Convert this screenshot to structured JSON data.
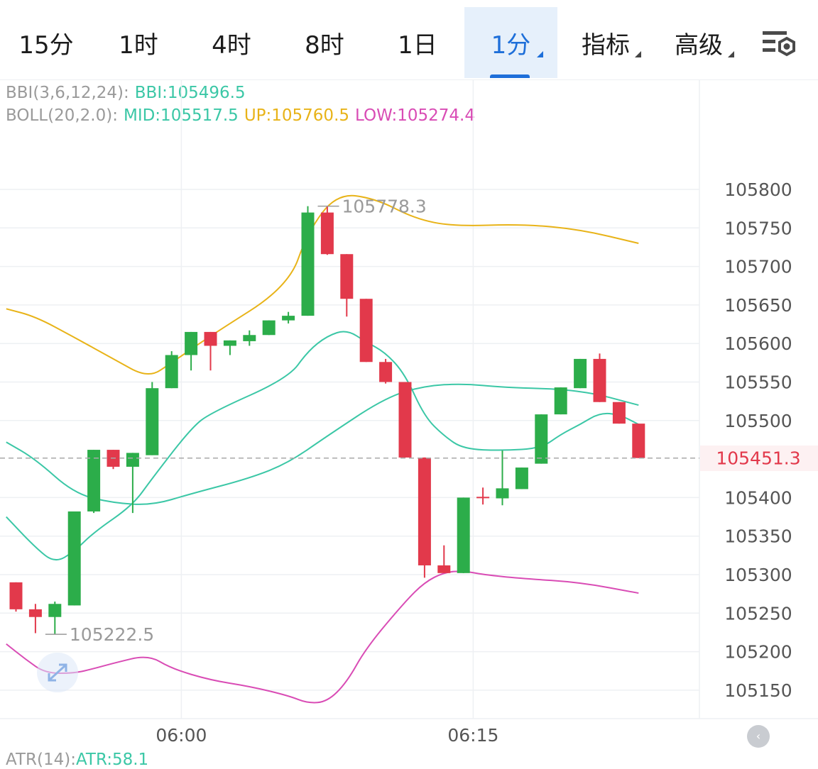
{
  "tabs": [
    {
      "label": "15分"
    },
    {
      "label": "1时"
    },
    {
      "label": "4时"
    },
    {
      "label": "8时"
    },
    {
      "label": "1日"
    },
    {
      "label": "1分",
      "active": true
    },
    {
      "label": "指标"
    },
    {
      "label": "高级"
    }
  ],
  "settings_icon": "chart-settings-icon",
  "indicators": {
    "bbi": {
      "name": "BBI(3,6,12,24):",
      "value": "BBI:105496.5"
    },
    "boll": {
      "name": "BOLL(20,2.0):",
      "mid": "MID:105517.5",
      "up": "UP:105760.5",
      "low": "LOW:105274.4"
    },
    "atr": {
      "name": "ATR(14):",
      "value": "ATR:58.1"
    }
  },
  "colors": {
    "up_candle": "#2cad4a",
    "down_candle": "#e2394b",
    "boll_up": "#e8b318",
    "boll_mid": "#3bc7a6",
    "boll_low": "#d94cb5",
    "bbi": "#3bc7a6",
    "grid": "#eef0f3",
    "axis_text": "#555555",
    "last_price": "#e2394b",
    "dim_text": "#9a9a9a"
  },
  "chart_data": {
    "type": "candlestick",
    "ylim": [
      105125,
      105890
    ],
    "yticks": [
      "105800",
      "105750",
      "105700",
      "105650",
      "105600",
      "105550",
      "105500",
      "105450",
      "105400",
      "105350",
      "105300",
      "105250",
      "105200",
      "105150"
    ],
    "xticks": [
      {
        "index": 8.5,
        "label": "06:00"
      },
      {
        "index": 23.5,
        "label": "06:15"
      }
    ],
    "last_price": "105451.3",
    "max_marker": {
      "index": 15,
      "label": "105778.3",
      "value": 105778.3
    },
    "min_marker": {
      "index": 1,
      "label": "105222.5",
      "value": 105222.5
    },
    "candles": [
      {
        "o": 105290,
        "h": 105290,
        "l": 105252,
        "c": 105255
      },
      {
        "o": 105255,
        "h": 105262,
        "l": 105224,
        "c": 105245
      },
      {
        "o": 105245,
        "h": 105265,
        "l": 105222.5,
        "c": 105262
      },
      {
        "o": 105260,
        "h": 105382,
        "l": 105260,
        "c": 105382
      },
      {
        "o": 105382,
        "h": 105462,
        "l": 105380,
        "c": 105462
      },
      {
        "o": 105462,
        "h": 105462,
        "l": 105437,
        "c": 105440
      },
      {
        "o": 105440,
        "h": 105458,
        "l": 105380,
        "c": 105458
      },
      {
        "o": 105455,
        "h": 105550,
        "l": 105455,
        "c": 105542
      },
      {
        "o": 105542,
        "h": 105590,
        "l": 105542,
        "c": 105585
      },
      {
        "o": 105585,
        "h": 105615,
        "l": 105565,
        "c": 105615
      },
      {
        "o": 105615,
        "h": 105615,
        "l": 105565,
        "c": 105597
      },
      {
        "o": 105597,
        "h": 105604,
        "l": 105585,
        "c": 105604
      },
      {
        "o": 105603,
        "h": 105617,
        "l": 105597,
        "c": 105611
      },
      {
        "o": 105611,
        "h": 105630,
        "l": 105611,
        "c": 105630
      },
      {
        "o": 105630,
        "h": 105641,
        "l": 105626,
        "c": 105636
      },
      {
        "o": 105636,
        "h": 105778.3,
        "l": 105636,
        "c": 105770
      },
      {
        "o": 105770,
        "h": 105778,
        "l": 105715,
        "c": 105716
      },
      {
        "o": 105716,
        "h": 105716,
        "l": 105635,
        "c": 105658
      },
      {
        "o": 105658,
        "h": 105658,
        "l": 105576,
        "c": 105576
      },
      {
        "o": 105576,
        "h": 105580,
        "l": 105548,
        "c": 105550
      },
      {
        "o": 105550,
        "h": 105550,
        "l": 105452,
        "c": 105452
      },
      {
        "o": 105452,
        "h": 105452,
        "l": 105296,
        "c": 105312
      },
      {
        "o": 105312,
        "h": 105338,
        "l": 105302,
        "c": 105302
      },
      {
        "o": 105302,
        "h": 105400,
        "l": 105302,
        "c": 105400
      },
      {
        "o": 105401,
        "h": 105413,
        "l": 105391,
        "c": 105400
      },
      {
        "o": 105399,
        "h": 105461,
        "l": 105390,
        "c": 105412
      },
      {
        "o": 105411,
        "h": 105439,
        "l": 105411,
        "c": 105439
      },
      {
        "o": 105444,
        "h": 105508,
        "l": 105444,
        "c": 105508
      },
      {
        "o": 105508,
        "h": 105543,
        "l": 105508,
        "c": 105543
      },
      {
        "o": 105542,
        "h": 105580,
        "l": 105542,
        "c": 105580
      },
      {
        "o": 105580,
        "h": 105587,
        "l": 105524,
        "c": 105524
      },
      {
        "o": 105524,
        "h": 105524,
        "l": 105496,
        "c": 105496
      },
      {
        "o": 105496,
        "h": 105496,
        "l": 105451.3,
        "c": 105451.3
      }
    ],
    "series": [
      {
        "name": "UP",
        "color": "#e8b318",
        "points": [
          [
            -0.5,
            105645
          ],
          [
            1,
            105635
          ],
          [
            3,
            105608
          ],
          [
            5,
            105580
          ],
          [
            6.8,
            105555
          ],
          [
            8,
            105575
          ],
          [
            10,
            105610
          ],
          [
            14,
            105674
          ],
          [
            15,
            105745
          ],
          [
            16.5,
            105795
          ],
          [
            18.5,
            105788
          ],
          [
            20.5,
            105762
          ],
          [
            22.5,
            105752
          ],
          [
            26,
            105755
          ],
          [
            29,
            105748
          ],
          [
            32,
            105730
          ]
        ]
      },
      {
        "name": "MID",
        "color": "#3bc7a6",
        "points": [
          [
            -0.5,
            105472
          ],
          [
            1,
            105450
          ],
          [
            3,
            105405
          ],
          [
            5,
            105393
          ],
          [
            7,
            105390
          ],
          [
            9,
            105405
          ],
          [
            12,
            105425
          ],
          [
            14,
            105445
          ],
          [
            16,
            105480
          ],
          [
            19,
            105530
          ],
          [
            21,
            105545
          ],
          [
            23,
            105548
          ],
          [
            25,
            105543
          ],
          [
            29,
            105540
          ],
          [
            32,
            105520
          ]
        ]
      },
      {
        "name": "LOW",
        "color": "#d94cb5",
        "points": [
          [
            -0.5,
            105210
          ],
          [
            0.5,
            105190
          ],
          [
            1.5,
            105172
          ],
          [
            3,
            105172
          ],
          [
            4,
            105178
          ],
          [
            5,
            105185
          ],
          [
            6.8,
            105196
          ],
          [
            8,
            105178
          ],
          [
            10,
            105163
          ],
          [
            12,
            105155
          ],
          [
            14,
            105143
          ],
          [
            15,
            105133
          ],
          [
            16,
            105135
          ],
          [
            17,
            105160
          ],
          [
            18,
            105205
          ],
          [
            20,
            105265
          ],
          [
            21,
            105290
          ],
          [
            22,
            105303
          ],
          [
            23,
            105305
          ],
          [
            24,
            105300
          ],
          [
            26,
            105295
          ],
          [
            29,
            105290
          ],
          [
            32,
            105276
          ]
        ]
      },
      {
        "name": "BBI",
        "color": "#3bc7a6",
        "points": [
          [
            -0.5,
            105375
          ],
          [
            1,
            105335
          ],
          [
            2,
            105315
          ],
          [
            3,
            105330
          ],
          [
            4,
            105355
          ],
          [
            6,
            105390
          ],
          [
            7,
            105425
          ],
          [
            9,
            105490
          ],
          [
            10,
            105510
          ],
          [
            14,
            105555
          ],
          [
            15,
            105590
          ],
          [
            16,
            105610
          ],
          [
            17,
            105618
          ],
          [
            18,
            105602
          ],
          [
            19,
            105588
          ],
          [
            20,
            105560
          ],
          [
            21,
            105505
          ],
          [
            22,
            105480
          ],
          [
            23,
            105463
          ],
          [
            25,
            105461
          ],
          [
            27,
            105464
          ],
          [
            28,
            105482
          ],
          [
            29,
            105495
          ],
          [
            30,
            105510
          ],
          [
            31,
            105508
          ],
          [
            32,
            105495
          ]
        ]
      }
    ]
  }
}
